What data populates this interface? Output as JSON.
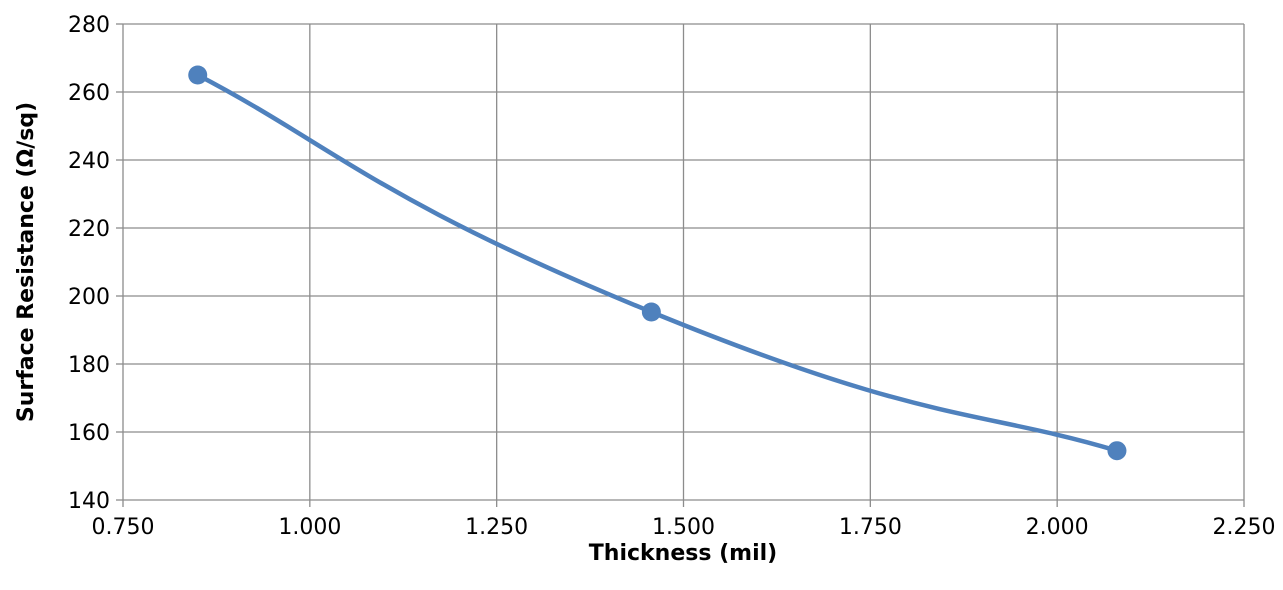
{
  "chart_data": {
    "type": "line",
    "title": "",
    "xlabel": "Thickness (mil)",
    "ylabel": "Surface Resistance (Ω/sq)",
    "xlim": [
      0.75,
      2.25
    ],
    "ylim": [
      140,
      280
    ],
    "x_ticks": [
      "0.750",
      "1.000",
      "1.250",
      "1.500",
      "1.750",
      "2.000",
      "2.250"
    ],
    "y_ticks": [
      "140",
      "160",
      "180",
      "200",
      "220",
      "240",
      "260",
      "280"
    ],
    "grid": true,
    "smooth": true,
    "series": [
      {
        "x": [
          0.85,
          1.457,
          2.08
        ],
        "y": [
          265,
          195.3,
          154.5
        ],
        "color": "#4f81bd"
      }
    ]
  }
}
